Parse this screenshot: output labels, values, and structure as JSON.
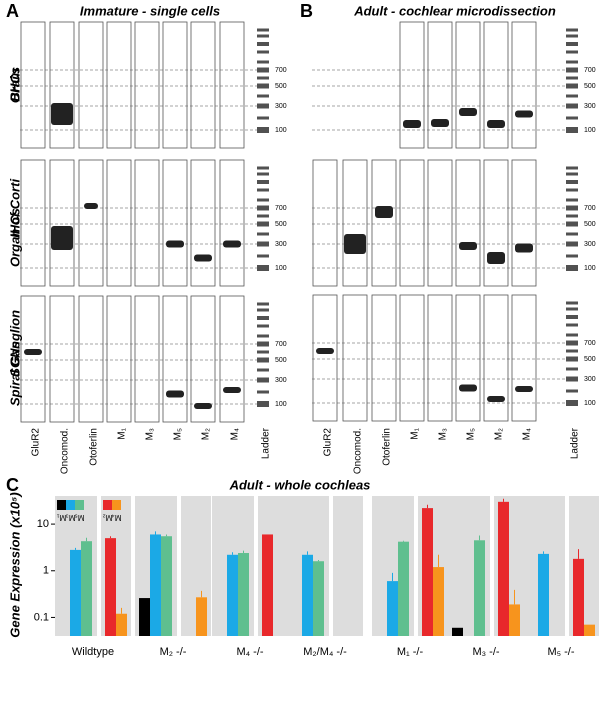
{
  "panel_a": {
    "letter": "A",
    "title": "Immature - single cells",
    "rows": [
      "OHCs",
      "IHCs",
      "SGNs"
    ]
  },
  "panel_b": {
    "letter": "B",
    "title": "Adult - cochlear microdissection",
    "rows": [
      "Brain",
      "Organ of Corti",
      "Spiral Ganglion"
    ]
  },
  "lanes": [
    "GluR2",
    "Oncomod.",
    "Otoferlin",
    "M₁",
    "M₃",
    "M₅",
    "M₂",
    "M₄",
    "Ladder"
  ],
  "ladder_sizes": [
    "700",
    "500",
    "300",
    "100"
  ],
  "chart_data": {
    "type": "bar",
    "letter": "C",
    "title": "Adult - whole cochleas",
    "y_label": "Gene Expression (x10⁵)",
    "log_scale": true,
    "ylim": [
      0.04,
      40
    ],
    "yticks": [
      0.1,
      1,
      10
    ],
    "categories": [
      "Wildtype",
      "M₂ -/-",
      "M₄ -/-",
      "M₂/M₄ -/-",
      "M₁ -/-",
      "M₃ -/-",
      "M₅ -/-"
    ],
    "series": [
      {
        "name": "M₁",
        "color": "#000000",
        "values": [
          null,
          0.26,
          null,
          null,
          null,
          0.06,
          null
        ],
        "errors": [
          null,
          0,
          null,
          null,
          null,
          0,
          null
        ]
      },
      {
        "name": "M₃",
        "color": "#1ba9e6",
        "values": [
          2.8,
          6.0,
          2.2,
          2.2,
          0.6,
          null,
          2.3
        ],
        "errors": [
          0.3,
          1.0,
          0.3,
          0.4,
          0.3,
          null,
          0.3
        ]
      },
      {
        "name": "M₅",
        "color": "#5fbf8f",
        "values": [
          4.3,
          5.5,
          2.4,
          1.6,
          4.2,
          4.5,
          null
        ],
        "errors": [
          0.8,
          0.5,
          0.3,
          0.1,
          0.2,
          1.2,
          null
        ]
      },
      {
        "name": "M₂",
        "color": "#e8282b",
        "values": [
          5.0,
          null,
          6.0,
          null,
          22,
          30,
          1.8
        ],
        "errors": [
          0.5,
          null,
          0,
          null,
          4,
          5,
          1.1
        ]
      },
      {
        "name": "M₄",
        "color": "#f7941d",
        "values": [
          0.12,
          0.27,
          null,
          null,
          1.2,
          0.19,
          0.07
        ],
        "errors": [
          0.04,
          0.1,
          null,
          null,
          1.0,
          0.2,
          0
        ]
      }
    ]
  }
}
